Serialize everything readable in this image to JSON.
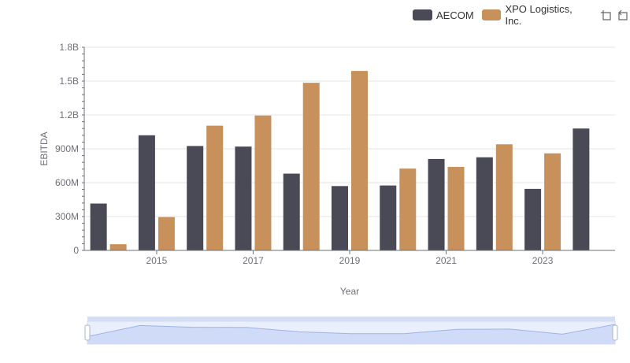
{
  "legend": {
    "items": [
      {
        "label": "AECOM",
        "color": "#4a4a56"
      },
      {
        "label": "XPO Logistics, Inc.",
        "color": "#c8915c"
      }
    ]
  },
  "toolbar": {
    "icons": [
      "zoom-icon",
      "restore-icon"
    ]
  },
  "chart_data": {
    "type": "bar",
    "x": [
      2014,
      2015,
      2016,
      2017,
      2018,
      2019,
      2020,
      2021,
      2022,
      2023,
      2024
    ],
    "xticks": [
      "2015",
      "2017",
      "2019",
      "2021",
      "2023"
    ],
    "series": [
      {
        "name": "AECOM",
        "color": "#4a4a56",
        "values": [
          415000000,
          1020000000,
          925000000,
          920000000,
          680000000,
          570000000,
          575000000,
          810000000,
          825000000,
          545000000,
          1080000000
        ]
      },
      {
        "name": "XPO Logistics, Inc.",
        "color": "#c8915c",
        "values": [
          55000000,
          295000000,
          1105000000,
          1195000000,
          1485000000,
          1590000000,
          725000000,
          740000000,
          940000000,
          860000000,
          null
        ]
      }
    ],
    "yticks": [
      "0",
      "300M",
      "600M",
      "900M",
      "1.2B",
      "1.5B",
      "1.8B"
    ],
    "ylim": [
      0,
      1800000000
    ],
    "xlabel": "Year",
    "ylabel": "EBITDA",
    "grid": true,
    "legend_position": "top-right",
    "datazoom": {
      "start": 0,
      "end": 100
    }
  }
}
